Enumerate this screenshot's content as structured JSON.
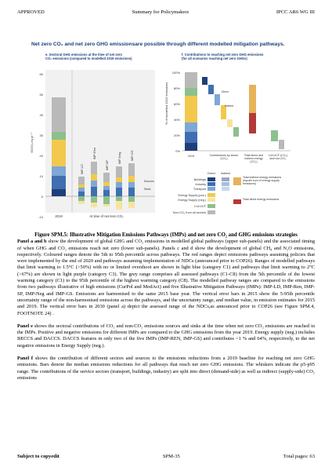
{
  "header": {
    "left": "APPROVED",
    "center": "Summary for Policymakers",
    "right": "IPCC AR6 WG III"
  },
  "figure": {
    "title": "Net zero CO₂ and net zero GHG emissionsare possible through different modelled mitigation pathways.",
    "panel_e": {
      "title_line1": "e. Sectoral GHG emissions at the time of net zero",
      "title_line2": "CO₂ emissions (compared to modelled 2019 emissions)",
      "ylabel": "GtCO₂-eq yr⁻¹",
      "yticks": [
        "60",
        "50",
        "40",
        "30",
        "20",
        "10",
        "0",
        "-10"
      ],
      "x_left": "2019",
      "x_right": "At time of net-zero CO₂",
      "ipp_labels": [
        "IMP-LD",
        "IMP-Ren",
        "IMP-SP",
        "IMP-Neg",
        "IMP-GS"
      ],
      "legend_sources": "Sources",
      "legend_sinks": "Sinks"
    },
    "panel_f": {
      "title_line1": "f. Contributions to reaching net zero GHG emissions",
      "title_line2": "(for all scenarios reaching net zero GHGs)",
      "ylabel": "% of modelled 2019 emissions",
      "yticks": [
        "100%",
        "80%",
        "60%",
        "40%",
        "20%",
        "0%"
      ],
      "x_labels": [
        "2019",
        "Contributions by sector (CO₂)",
        "Total direct and indirect energy (CO₂)",
        "LULUCF (CO₂) and non-CO₂"
      ],
      "bar_labels": [
        "Direct",
        "Indirect"
      ]
    },
    "legend": {
      "col_direct": "Direct",
      "col_indirect": "Indirect",
      "rows": [
        "Buildings",
        "Industry",
        "Transport",
        "Energy Supply (pos.)",
        "Energy Supply (neg.)",
        "LULUCF",
        "Non-CO₂ from all sectors"
      ],
      "right_1": "Total indirect energy emissions (equals sum of energy supply emissions)",
      "right_2": "Total direct energy emissions"
    }
  },
  "caption": {
    "title": "Figure SPM.5: Illustrative Mitigation Emissions Pathways (IMPs) and net zero CO₂ and GHG emissions strategies",
    "p1_lead": "Panel a and b",
    "p1": " show the development of global GHG and CO₂ emissions in modelled global pathways (upper sub-panels) and the associated timing of when GHG and CO₂ emissions reach net zero (lower sub-panels). Panels c and d show the development of global CH₄ and N₂O emissions, respectively. Coloured ranges denote the 5th to 95th percentile across pathways. The red ranges depict emissions pathways assuming policies that were implemented by the end of 2020 and pathways assuming implementation of NDCs (announced prior to COP26). Ranges of modelled pathways that limit warming to 1.5°C (>50%) with no or limited overshoot are shown in light blue (category C1) and pathways that limit warming to 2°C (>67%) are shown in light purple (category C3). The grey range comprises all assessed pathways (C1-C8) from the 5th percentile of the lowest warming category (C1) to the 95th percentile of the highest warming category (C8). The modelled pathway ranges are compared to the emissions from two pathways illustrative of high emissions (CurPol and ModAct) and five Illustrative Mitigation Pathways (IMPs): IMP-LD, IMP-Ren, IMP-SP, IMP-Neg and IMP-GS. Emissions are harmonised to the same 2015 base year. The vertical error bars in 2015 show the 5-95th percentile uncertainty range of the non-harmonised emissions across the pathways, and the uncertainty range, and median value, in emission estimates for 2015 and 2019. The vertical error bars in 2030 (panel a) depict the assessed range of the NDCs,as announced prior to COP26 (see Figure SPM.4, FOOTNOTE 24) .",
    "p2_lead": "Panel e",
    "p2": " shows the sectoral contributions of CO₂ and non-CO₂ emissions sources and sinks at the time when net zero CO₂ emissions are reached in the IMPs. Positive and negative emissions for different IMPs are compared to the GHG emissions from the year 2019. Energy supply (neg.) includes BECCS and DACCS. DACCS features in only two of the five IMPs (IMP-REN, IMP-GS) and contributes <1 % and 64%, respectively, to the net negative emissions in Energy Supply (neg.).",
    "p3_lead": "Panel f",
    "p3": " shows the contribution of different sectors and sources to the emissions reductions from a 2019 baseline for reaching net zero GHG emissions. Bars denote the median emissions reductions for all pathways that reach net zero GHG emissions. The whiskers indicate the p5-p95 range. The contributions of the service sectors (transport, buildings, industry) are split into direct (demand-side) as well as indirect (supply-side) CO₂ emissions"
  },
  "footer": {
    "left": "Subject to copyedit",
    "center": "SPM-35",
    "right": "Total pages: 63"
  },
  "colors": {
    "buildings": "#1f3f78",
    "industry": "#3f6fb0",
    "transport": "#7fa7d8",
    "energy_pos": "#f2c94c",
    "energy_neg": "#f7e3a0",
    "lulucf": "#8cc08c",
    "nonco2": "#b9b9b9",
    "indirect_total": "#e6b35a",
    "direct_total": "#b23a3a",
    "title_blue": "#1d3f7a"
  }
}
